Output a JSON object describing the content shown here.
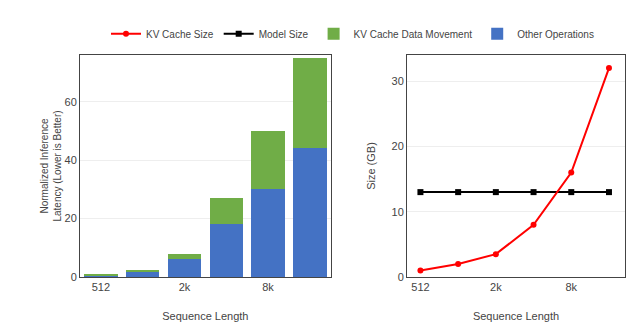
{
  "chart_data": [
    {
      "type": "bar",
      "stacked": true,
      "categories": [
        "512",
        null,
        "2k",
        null,
        "8k",
        null
      ],
      "series": [
        {
          "name": "Other Operations",
          "color": "#4472C4",
          "values": [
            0.5,
            2.0,
            6.0,
            18.0,
            30.0,
            44.0
          ]
        },
        {
          "name": "KV Cache Data Movement",
          "color": "#70AD47",
          "values": [
            0.3,
            0.5,
            2.0,
            9.0,
            20.0,
            31.0
          ]
        }
      ],
      "xlabel": "Sequence Length",
      "ylabel": "Normalized Inference\nLatency (Lower is Better)",
      "ylim": [
        0,
        76
      ],
      "yticks": [
        0,
        20,
        40,
        60
      ],
      "grid": true,
      "legend": "top"
    },
    {
      "type": "line",
      "x": [
        512,
        1024,
        2048,
        4096,
        8192,
        16384
      ],
      "series": [
        {
          "name": "Model Size",
          "color": "#000000",
          "marker": "square",
          "values": [
            13.0,
            13.0,
            13.0,
            13.0,
            13.0,
            13.0
          ]
        },
        {
          "name": "KV Cache Size",
          "color": "#FF0000",
          "marker": "circle",
          "values": [
            1.0,
            2.0,
            3.5,
            8.0,
            16.0,
            32.0
          ]
        }
      ],
      "log": "x",
      "xlabel": "Sequence Length",
      "ylabel": "Size (GB)",
      "xlim": [
        400,
        22000
      ],
      "xticks": [
        512,
        {
          "value": 2048,
          "label": "2k"
        },
        {
          "value": 8192,
          "label": "8k"
        }
      ],
      "ylim": [
        0,
        34
      ],
      "yticks": [
        0,
        10,
        20,
        30
      ],
      "grid": true,
      "legend": "top"
    }
  ]
}
